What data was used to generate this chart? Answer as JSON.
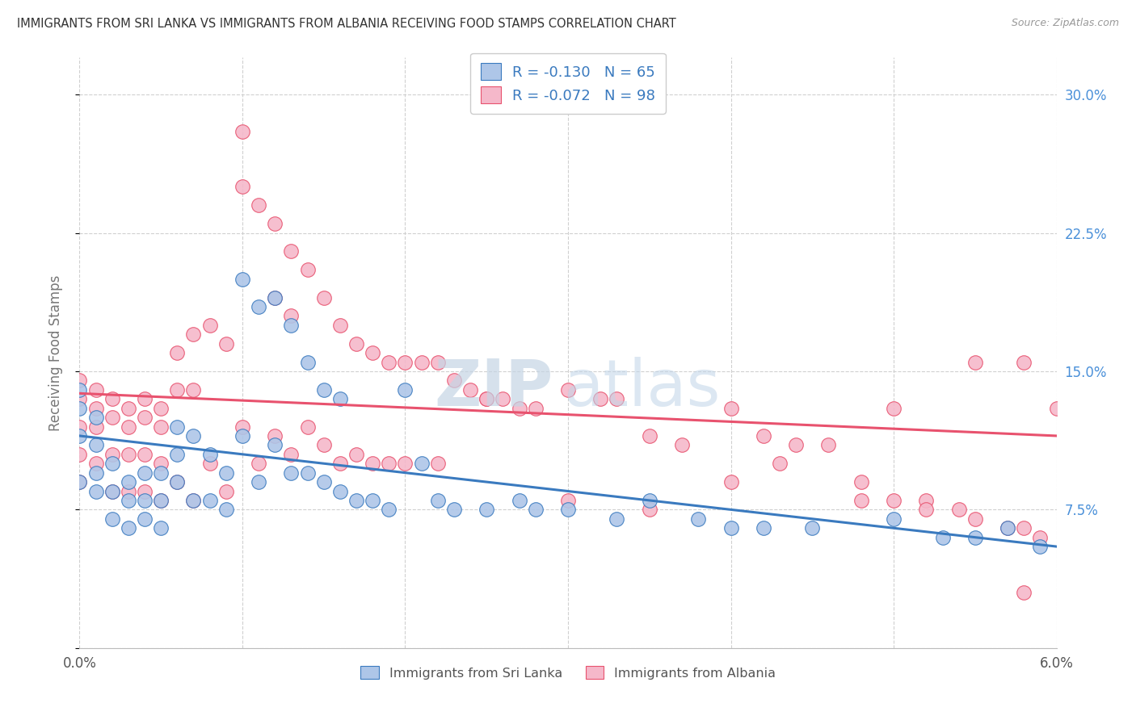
{
  "title": "IMMIGRANTS FROM SRI LANKA VS IMMIGRANTS FROM ALBANIA RECEIVING FOOD STAMPS CORRELATION CHART",
  "source": "Source: ZipAtlas.com",
  "ylabel": "Receiving Food Stamps",
  "sri_lanka_R": -0.13,
  "sri_lanka_N": 65,
  "albania_R": -0.072,
  "albania_N": 98,
  "sri_lanka_color": "#aec6e8",
  "albania_color": "#f5b8ca",
  "sri_lanka_line_color": "#3a7abf",
  "albania_line_color": "#e8526e",
  "background_color": "#ffffff",
  "watermark_zip_color": "#c8d8e8",
  "watermark_atlas_color": "#b0c8dc",
  "legend_label_sri_lanka": "Immigrants from Sri Lanka",
  "legend_label_albania": "Immigrants from Albania",
  "x_min": 0.0,
  "x_max": 0.06,
  "y_min": 0.0,
  "y_max": 0.32,
  "sri_lanka_trend_x0": 0.0,
  "sri_lanka_trend_y0": 0.115,
  "sri_lanka_trend_x1": 0.06,
  "sri_lanka_trend_y1": 0.055,
  "albania_trend_x0": 0.0,
  "albania_trend_y0": 0.138,
  "albania_trend_x1": 0.06,
  "albania_trend_y1": 0.115,
  "sl_x": [
    0.0,
    0.0,
    0.0,
    0.0,
    0.001,
    0.001,
    0.001,
    0.001,
    0.002,
    0.002,
    0.002,
    0.003,
    0.003,
    0.003,
    0.004,
    0.004,
    0.004,
    0.005,
    0.005,
    0.005,
    0.006,
    0.006,
    0.006,
    0.007,
    0.007,
    0.008,
    0.008,
    0.009,
    0.009,
    0.01,
    0.01,
    0.011,
    0.011,
    0.012,
    0.012,
    0.013,
    0.013,
    0.014,
    0.014,
    0.015,
    0.015,
    0.016,
    0.016,
    0.017,
    0.018,
    0.019,
    0.02,
    0.021,
    0.022,
    0.023,
    0.025,
    0.027,
    0.028,
    0.03,
    0.033,
    0.035,
    0.038,
    0.04,
    0.042,
    0.045,
    0.05,
    0.053,
    0.055,
    0.057,
    0.059
  ],
  "sl_y": [
    0.14,
    0.13,
    0.115,
    0.09,
    0.125,
    0.11,
    0.095,
    0.085,
    0.1,
    0.085,
    0.07,
    0.09,
    0.08,
    0.065,
    0.095,
    0.08,
    0.07,
    0.095,
    0.08,
    0.065,
    0.12,
    0.105,
    0.09,
    0.115,
    0.08,
    0.105,
    0.08,
    0.095,
    0.075,
    0.2,
    0.115,
    0.185,
    0.09,
    0.19,
    0.11,
    0.175,
    0.095,
    0.155,
    0.095,
    0.14,
    0.09,
    0.135,
    0.085,
    0.08,
    0.08,
    0.075,
    0.14,
    0.1,
    0.08,
    0.075,
    0.075,
    0.08,
    0.075,
    0.075,
    0.07,
    0.08,
    0.07,
    0.065,
    0.065,
    0.065,
    0.07,
    0.06,
    0.06,
    0.065,
    0.055
  ],
  "al_x": [
    0.0,
    0.0,
    0.0,
    0.0,
    0.0,
    0.001,
    0.001,
    0.001,
    0.001,
    0.002,
    0.002,
    0.002,
    0.002,
    0.003,
    0.003,
    0.003,
    0.003,
    0.004,
    0.004,
    0.004,
    0.004,
    0.005,
    0.005,
    0.005,
    0.005,
    0.006,
    0.006,
    0.006,
    0.007,
    0.007,
    0.007,
    0.008,
    0.008,
    0.009,
    0.009,
    0.01,
    0.01,
    0.01,
    0.011,
    0.011,
    0.012,
    0.012,
    0.012,
    0.013,
    0.013,
    0.013,
    0.014,
    0.014,
    0.015,
    0.015,
    0.016,
    0.016,
    0.017,
    0.017,
    0.018,
    0.018,
    0.019,
    0.019,
    0.02,
    0.02,
    0.021,
    0.022,
    0.022,
    0.023,
    0.024,
    0.025,
    0.026,
    0.027,
    0.028,
    0.03,
    0.032,
    0.033,
    0.035,
    0.037,
    0.04,
    0.042,
    0.044,
    0.046,
    0.048,
    0.05,
    0.052,
    0.054,
    0.055,
    0.057,
    0.058,
    0.058,
    0.059,
    0.06,
    0.043,
    0.048,
    0.05,
    0.052,
    0.055,
    0.058,
    0.025,
    0.03,
    0.035,
    0.04
  ],
  "al_y": [
    0.145,
    0.135,
    0.12,
    0.105,
    0.09,
    0.14,
    0.13,
    0.12,
    0.1,
    0.135,
    0.125,
    0.105,
    0.085,
    0.13,
    0.12,
    0.105,
    0.085,
    0.135,
    0.125,
    0.105,
    0.085,
    0.13,
    0.12,
    0.1,
    0.08,
    0.16,
    0.14,
    0.09,
    0.17,
    0.14,
    0.08,
    0.175,
    0.1,
    0.165,
    0.085,
    0.28,
    0.25,
    0.12,
    0.24,
    0.1,
    0.23,
    0.19,
    0.115,
    0.215,
    0.18,
    0.105,
    0.205,
    0.12,
    0.19,
    0.11,
    0.175,
    0.1,
    0.165,
    0.105,
    0.16,
    0.1,
    0.155,
    0.1,
    0.155,
    0.1,
    0.155,
    0.155,
    0.1,
    0.145,
    0.14,
    0.135,
    0.135,
    0.13,
    0.13,
    0.14,
    0.135,
    0.135,
    0.115,
    0.11,
    0.13,
    0.115,
    0.11,
    0.11,
    0.09,
    0.13,
    0.08,
    0.075,
    0.155,
    0.065,
    0.155,
    0.065,
    0.06,
    0.13,
    0.1,
    0.08,
    0.08,
    0.075,
    0.07,
    0.03,
    0.135,
    0.08,
    0.075,
    0.09
  ]
}
